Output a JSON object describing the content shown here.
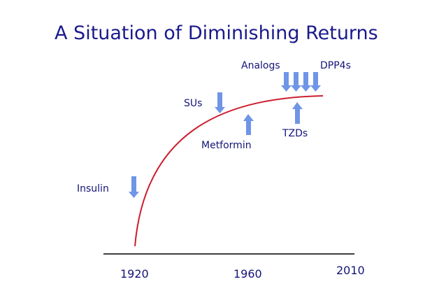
{
  "title": "A Situation of Diminishing Returns",
  "timeline": {
    "years": [
      "1920",
      "1960",
      "2010"
    ]
  },
  "labels": {
    "insulin": "Insulin",
    "sus": "SUs",
    "metformin": "Metformin",
    "analogs": "Analogs",
    "dpp4s": "DPP4s",
    "tzds": "TZDs"
  },
  "colors": {
    "title": "#1a1a8c",
    "text": "#141478",
    "curve": "#cc1f2f",
    "arrow": "#6f95e6",
    "axis": "#000000"
  },
  "arrows": {
    "insulin": "down",
    "sus": "down",
    "metformin": "up",
    "analogs": "down",
    "dpp4s": "down",
    "tzds": "up"
  }
}
